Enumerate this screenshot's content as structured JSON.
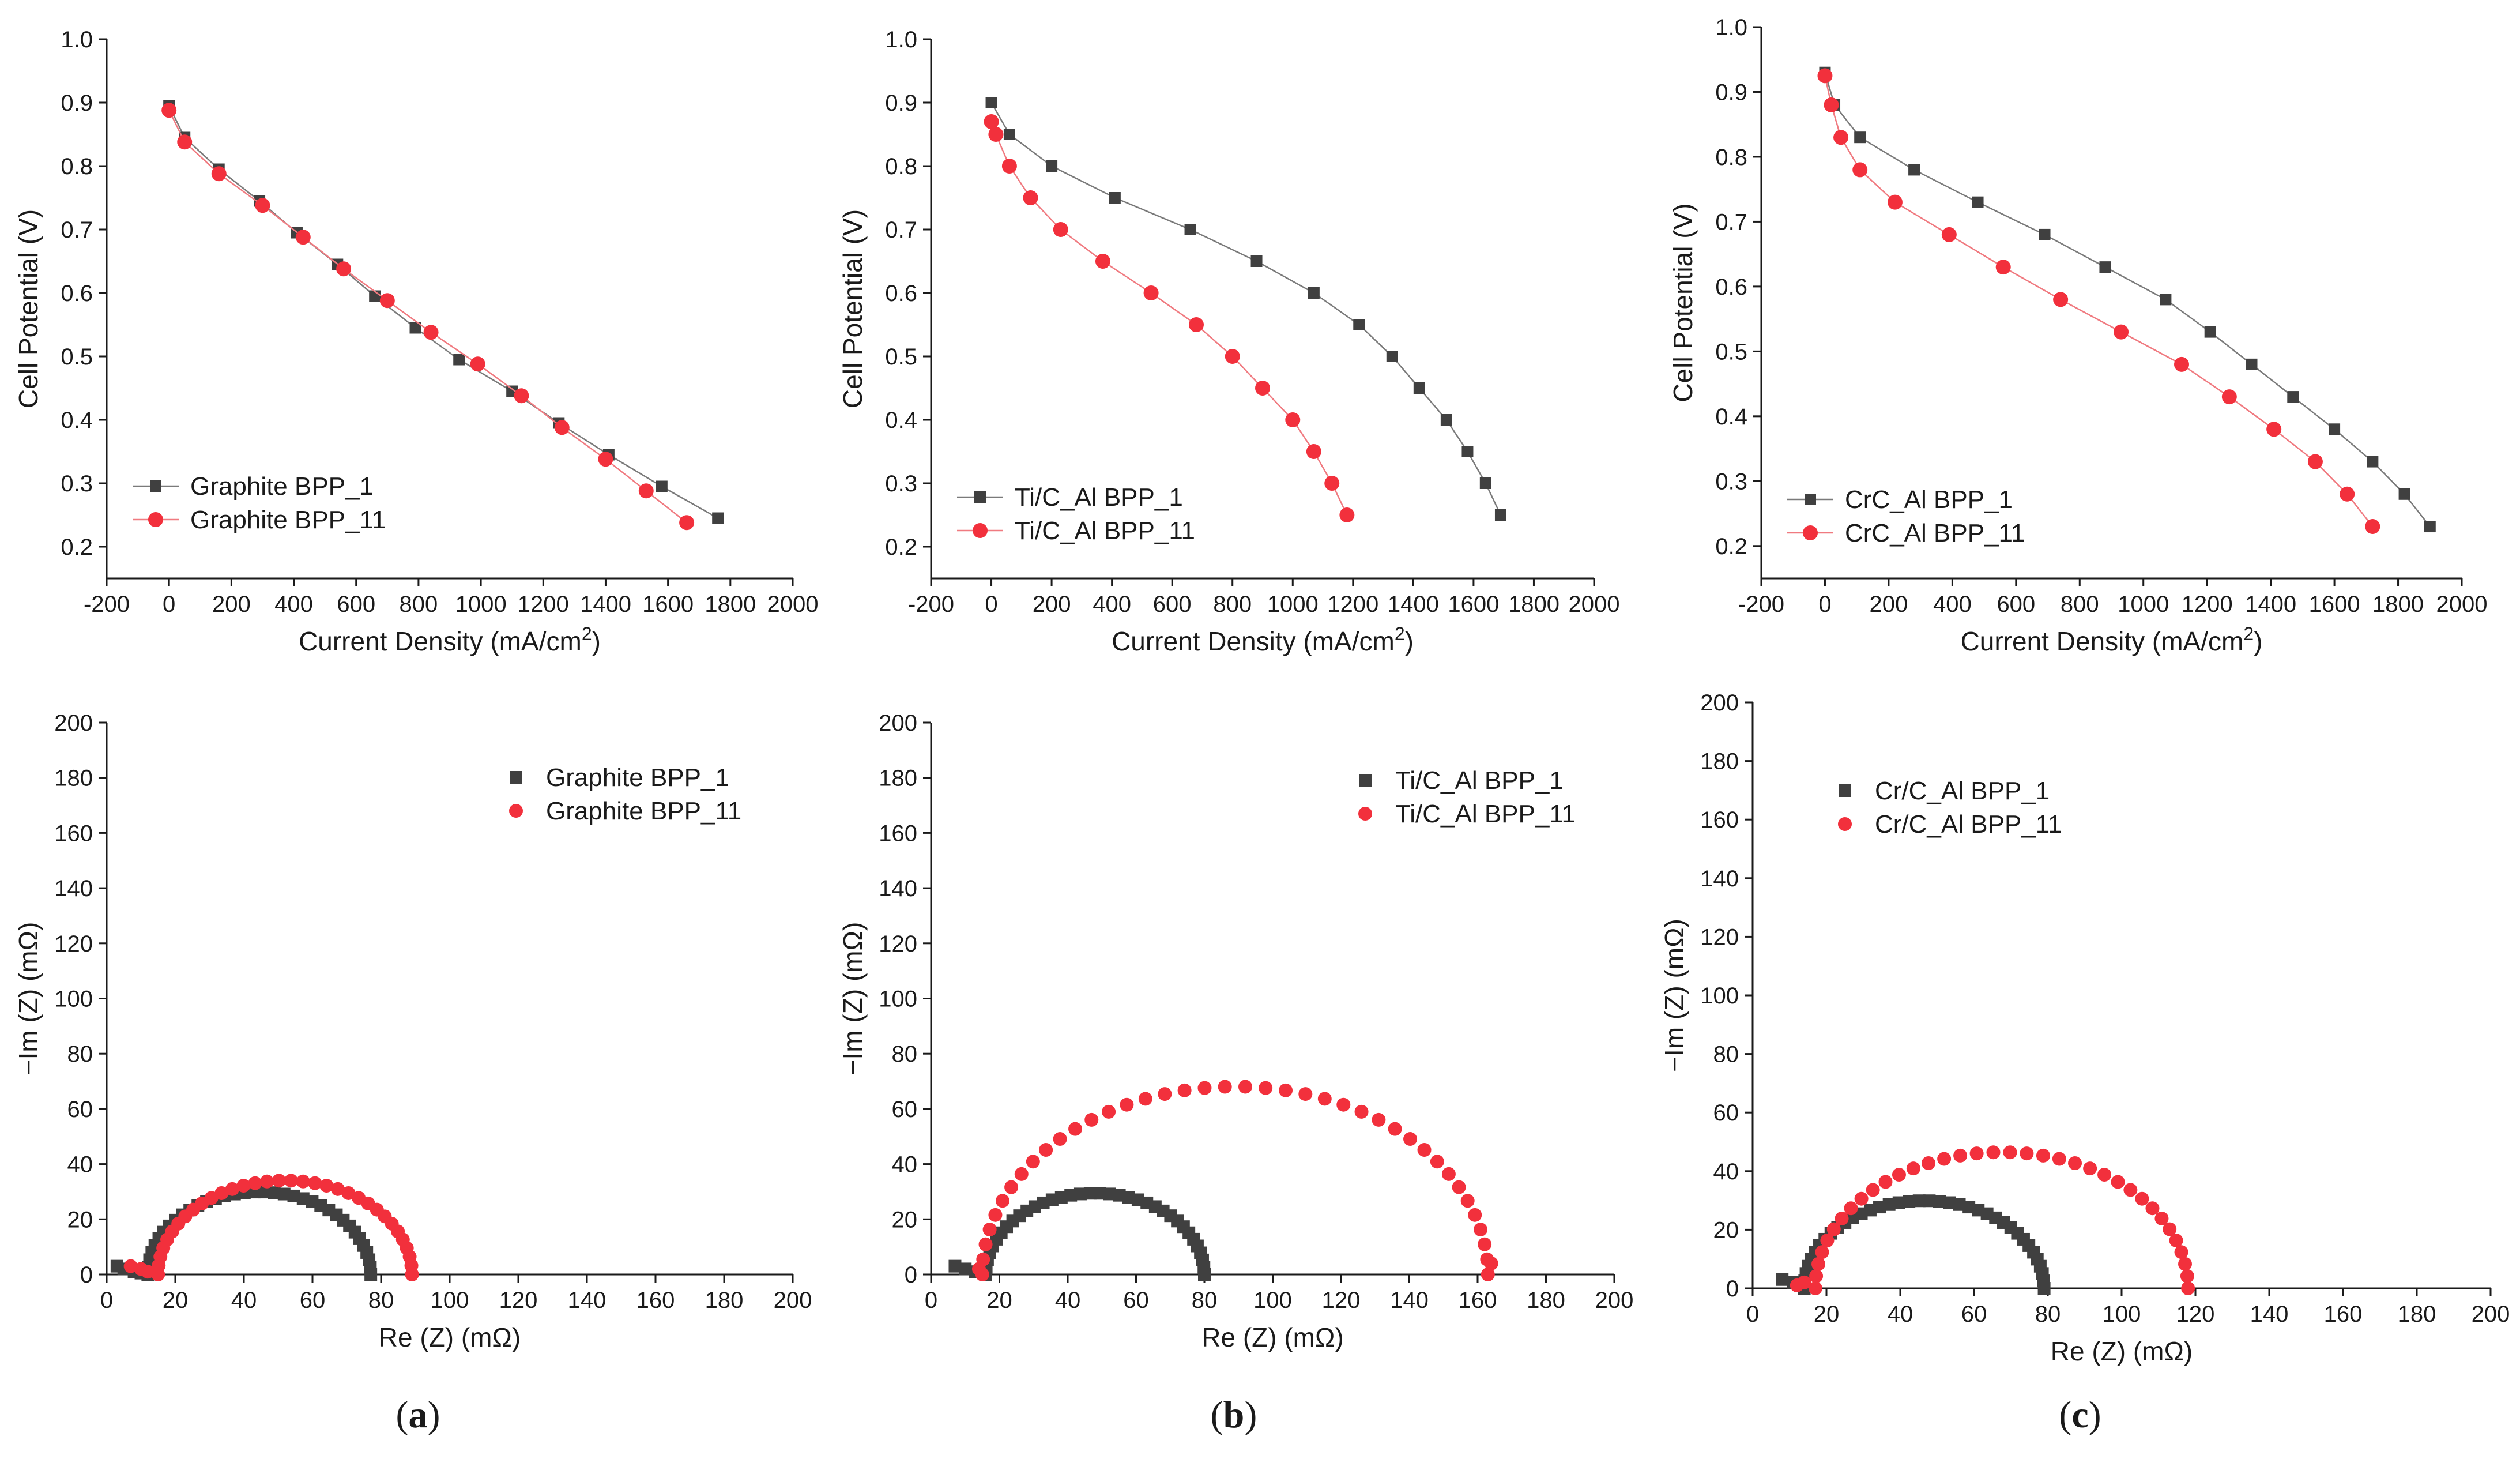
{
  "colors": {
    "series1": "#404040",
    "series2": "#f2303c",
    "axis": "#1a1a1a",
    "line1": "#7a7a7a",
    "line2": "#f07a80"
  },
  "panel_labels": [
    "a",
    "b",
    "c"
  ],
  "chart_data": [
    {
      "id": "pol_a",
      "type": "line",
      "xlabel": "Current Density (mA/cm",
      "xlabel_sup": "2",
      "xlabel_end": ")",
      "ylabel": "Cell Potential (V)",
      "xlim": [
        -200,
        2000
      ],
      "ylim": [
        0.15,
        1.0
      ],
      "xticks": [
        -200,
        0,
        200,
        400,
        600,
        800,
        1000,
        1200,
        1400,
        1600,
        1800,
        2000
      ],
      "xtick_labels": [
        "-200",
        "0",
        "200",
        "400",
        "600",
        "800",
        "1000",
        "1200",
        "1400",
        "1600",
        "1800",
        "2000"
      ],
      "yticks": [
        0.2,
        0.3,
        0.4,
        0.5,
        0.6,
        0.7,
        0.8,
        0.9,
        1.0
      ],
      "ytick_labels": [
        "0.2",
        "0.3",
        "0.4",
        "0.5",
        "0.6",
        "0.7",
        "0.8",
        "0.9",
        "1.0"
      ],
      "legend_position": "bottom-left",
      "series": [
        {
          "name": "Graphite BPP_1",
          "marker": "square",
          "x": [
            0,
            50,
            160,
            290,
            410,
            540,
            660,
            790,
            930,
            1100,
            1250,
            1410,
            1580,
            1760
          ],
          "y": [
            0.895,
            0.845,
            0.795,
            0.745,
            0.695,
            0.645,
            0.595,
            0.545,
            0.495,
            0.445,
            0.395,
            0.345,
            0.295,
            0.245
          ]
        },
        {
          "name": "Graphite BPP_11",
          "marker": "circle",
          "x": [
            0,
            50,
            160,
            300,
            430,
            560,
            700,
            840,
            990,
            1130,
            1260,
            1400,
            1530,
            1660
          ],
          "y": [
            0.888,
            0.838,
            0.788,
            0.738,
            0.688,
            0.638,
            0.588,
            0.538,
            0.488,
            0.438,
            0.388,
            0.338,
            0.288,
            0.238
          ]
        }
      ]
    },
    {
      "id": "pol_b",
      "type": "line",
      "xlabel": "Current Density (mA/cm",
      "xlabel_sup": "2",
      "xlabel_end": ")",
      "ylabel": "Cell Potential (V)",
      "xlim": [
        -200,
        2000
      ],
      "ylim": [
        0.15,
        1.0
      ],
      "xticks": [
        -200,
        0,
        200,
        400,
        600,
        800,
        1000,
        1200,
        1400,
        1600,
        1800,
        2000
      ],
      "xtick_labels": [
        "-200",
        "0",
        "200",
        "400",
        "600",
        "800",
        "1000",
        "1200",
        "1400",
        "1600",
        "1800",
        "2000"
      ],
      "yticks": [
        0.2,
        0.3,
        0.4,
        0.5,
        0.6,
        0.7,
        0.8,
        0.9,
        1.0
      ],
      "ytick_labels": [
        "0.2",
        "0.3",
        "0.4",
        "0.5",
        "0.6",
        "0.7",
        "0.8",
        "0.9",
        "1.0"
      ],
      "legend_position": "bottom-left",
      "series": [
        {
          "name": "Ti/C_Al BPP_1",
          "marker": "square",
          "x": [
            0,
            60,
            200,
            410,
            660,
            880,
            1070,
            1220,
            1330,
            1420,
            1510,
            1580,
            1640,
            1690
          ],
          "y": [
            0.9,
            0.85,
            0.8,
            0.75,
            0.7,
            0.65,
            0.6,
            0.55,
            0.5,
            0.45,
            0.4,
            0.35,
            0.3,
            0.25
          ]
        },
        {
          "name": "Ti/C_Al BPP_11",
          "marker": "circle",
          "x": [
            0,
            15,
            60,
            130,
            230,
            370,
            530,
            680,
            800,
            900,
            1000,
            1070,
            1130,
            1180
          ],
          "y": [
            0.87,
            0.85,
            0.8,
            0.75,
            0.7,
            0.65,
            0.6,
            0.55,
            0.5,
            0.45,
            0.4,
            0.35,
            0.3,
            0.25
          ]
        }
      ]
    },
    {
      "id": "pol_c",
      "type": "line",
      "xlabel": "Current Density (mA/cm",
      "xlabel_sup": "2",
      "xlabel_end": ")",
      "ylabel": "Cell Potential (V)",
      "xlim": [
        -200,
        2000
      ],
      "ylim": [
        0.15,
        1.0
      ],
      "xticks": [
        -200,
        0,
        200,
        400,
        600,
        800,
        1000,
        1200,
        1400,
        1600,
        1800,
        2000
      ],
      "xtick_labels": [
        "-200",
        "0",
        "200",
        "400",
        "600",
        "800",
        "1000",
        "1200",
        "1400",
        "1600",
        "1800",
        "2000"
      ],
      "yticks": [
        0.2,
        0.3,
        0.4,
        0.5,
        0.6,
        0.7,
        0.8,
        0.9,
        1.0
      ],
      "ytick_labels": [
        "0.2",
        "0.3",
        "0.4",
        "0.5",
        "0.6",
        "0.7",
        "0.8",
        "0.9",
        "1.0"
      ],
      "legend_position": "bottom-left",
      "series": [
        {
          "name": "CrC_Al BPP_1",
          "marker": "square",
          "x": [
            0,
            30,
            110,
            280,
            480,
            690,
            880,
            1070,
            1210,
            1340,
            1470,
            1600,
            1720,
            1820,
            1900
          ],
          "y": [
            0.93,
            0.88,
            0.83,
            0.78,
            0.73,
            0.68,
            0.63,
            0.58,
            0.53,
            0.48,
            0.43,
            0.38,
            0.33,
            0.28,
            0.23
          ]
        },
        {
          "name": "CrC_Al BPP_11",
          "marker": "circle",
          "x": [
            0,
            20,
            50,
            110,
            220,
            390,
            560,
            740,
            930,
            1120,
            1270,
            1410,
            1540,
            1640,
            1720
          ],
          "y": [
            0.925,
            0.88,
            0.83,
            0.78,
            0.73,
            0.68,
            0.63,
            0.58,
            0.53,
            0.48,
            0.43,
            0.38,
            0.33,
            0.28,
            0.23
          ]
        }
      ]
    },
    {
      "id": "eis_a",
      "type": "scatter",
      "xlabel": "Re (Z) (mΩ)",
      "ylabel": "−Im (Z) (mΩ)",
      "xlim": [
        0,
        200
      ],
      "ylim": [
        0,
        200
      ],
      "xticks": [
        0,
        20,
        40,
        60,
        80,
        100,
        120,
        140,
        160,
        180,
        200
      ],
      "xtick_labels": [
        "0",
        "20",
        "40",
        "60",
        "80",
        "100",
        "120",
        "140",
        "160",
        "180",
        "200"
      ],
      "yticks": [
        0,
        20,
        40,
        60,
        80,
        100,
        120,
        140,
        160,
        180,
        200
      ],
      "ytick_labels": [
        "0",
        "20",
        "40",
        "60",
        "80",
        "100",
        "120",
        "140",
        "160",
        "180",
        "200"
      ],
      "legend_position": "top-right",
      "series": [
        {
          "name": "Graphite BPP_1",
          "marker": "square",
          "arc": {
            "r_start": 12,
            "r_end": 77,
            "n": 36
          },
          "tail_x": [
            3,
            5,
            8,
            10
          ],
          "tail_y": [
            3,
            2,
            1,
            0.5
          ]
        },
        {
          "name": "Graphite BPP_11",
          "marker": "circle",
          "arc": {
            "r_start": 15,
            "r_end": 89,
            "n": 34
          },
          "tail_x": [
            7,
            10,
            12
          ],
          "tail_y": [
            3,
            2,
            1
          ]
        }
      ]
    },
    {
      "id": "eis_b",
      "type": "scatter",
      "xlabel": "Re (Z) (mΩ)",
      "ylabel": "−Im (Z) (mΩ)",
      "xlim": [
        0,
        200
      ],
      "ylim": [
        0,
        200
      ],
      "xticks": [
        0,
        20,
        40,
        60,
        80,
        100,
        120,
        140,
        160,
        180,
        200
      ],
      "xtick_labels": [
        "0",
        "20",
        "40",
        "60",
        "80",
        "100",
        "120",
        "140",
        "160",
        "180",
        "200"
      ],
      "yticks": [
        0,
        20,
        40,
        60,
        80,
        100,
        120,
        140,
        160,
        180,
        200
      ],
      "ytick_labels": [
        "0",
        "20",
        "40",
        "60",
        "80",
        "100",
        "120",
        "140",
        "160",
        "180",
        "200"
      ],
      "legend_position": "top-right",
      "series": [
        {
          "name": "Ti/C_Al BPP_1",
          "marker": "square",
          "arc": {
            "r_start": 16,
            "r_end": 80,
            "n": 36
          },
          "tail_x": [
            7,
            10,
            13
          ],
          "tail_y": [
            3,
            2,
            1
          ]
        },
        {
          "name": "Ti/C_Al BPP_11",
          "marker": "circle",
          "arc": {
            "r_start": 15,
            "r_end": 163,
            "n": 40
          },
          "tail_x": [
            14,
            164
          ],
          "tail_y": [
            2,
            4
          ]
        }
      ]
    },
    {
      "id": "eis_c",
      "type": "scatter",
      "xlabel": "Re (Z) (mΩ)",
      "ylabel": "−Im (Z) (mΩ)",
      "xlim": [
        0,
        200
      ],
      "ylim": [
        0,
        200
      ],
      "xticks": [
        0,
        20,
        40,
        60,
        80,
        100,
        120,
        140,
        160,
        180,
        200
      ],
      "xtick_labels": [
        "0",
        "20",
        "40",
        "60",
        "80",
        "100",
        "120",
        "140",
        "160",
        "180",
        "200"
      ],
      "yticks": [
        0,
        20,
        40,
        60,
        80,
        100,
        120,
        140,
        160,
        180,
        200
      ],
      "ytick_labels": [
        "0",
        "20",
        "40",
        "60",
        "80",
        "100",
        "120",
        "140",
        "160",
        "180",
        "200"
      ],
      "legend_position": "top-left",
      "series": [
        {
          "name": "Cr/C_Al BPP_1",
          "marker": "square",
          "arc": {
            "r_start": 14,
            "r_end": 79,
            "n": 38
          },
          "tail_x": [
            8,
            11,
            13
          ],
          "tail_y": [
            3,
            2,
            1
          ]
        },
        {
          "name": "Cr/C_Al BPP_11",
          "marker": "circle",
          "arc": {
            "r_start": 17,
            "r_end": 118,
            "n": 36
          },
          "tail_x": [
            12,
            14
          ],
          "tail_y": [
            1,
            2
          ]
        }
      ]
    }
  ]
}
